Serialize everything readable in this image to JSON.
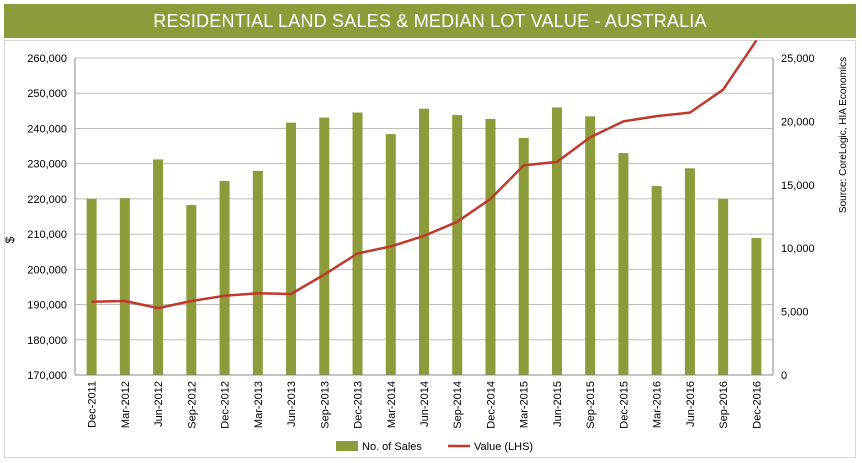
{
  "chart_data": {
    "type": "bar+line",
    "title": "RESIDENTIAL LAND SALES & MEDIAN LOT VALUE - AUSTRALIA",
    "source": "Source: CoreLogic, HIA Economics",
    "ylabel_left": "$",
    "categories": [
      "Dec-2011",
      "Mar-2012",
      "Jun-2012",
      "Sep-2012",
      "Dec-2012",
      "Mar-2013",
      "Jun-2013",
      "Sep-2013",
      "Dec-2013",
      "Mar-2014",
      "Jun-2014",
      "Sep-2014",
      "Dec-2014",
      "Mar-2015",
      "Jun-2015",
      "Sep-2015",
      "Dec-2015",
      "Mar-2016",
      "Jun-2016",
      "Sep-2016",
      "Dec-2016"
    ],
    "series": [
      {
        "name": "No. of Sales",
        "axis": "right",
        "kind": "bar",
        "color": "#8c9c3a",
        "values": [
          13900,
          13950,
          17000,
          13400,
          15300,
          16100,
          19900,
          20300,
          20700,
          19000,
          21000,
          20500,
          20200,
          18700,
          21100,
          20400,
          17500,
          14900,
          16300,
          13900,
          10800
        ]
      },
      {
        "name": "Value (LHS)",
        "axis": "left",
        "kind": "line",
        "color": "#c0392b",
        "values": [
          190800,
          191000,
          189000,
          191000,
          192500,
          193200,
          193000,
          198500,
          204500,
          206500,
          209500,
          213500,
          220000,
          229500,
          230500,
          237500,
          242000,
          243500,
          244500,
          251000,
          265000
        ]
      }
    ],
    "ylim_left": [
      170000,
      260000
    ],
    "ylim_right": [
      0,
      25000
    ],
    "yticks_left": [
      "170,000",
      "180,000",
      "190,000",
      "200,000",
      "210,000",
      "220,000",
      "230,000",
      "240,000",
      "250,000",
      "260,000"
    ],
    "yticks_right": [
      "0",
      "5,000",
      "10,000",
      "15,000",
      "20,000",
      "25,000"
    ],
    "legend": [
      "No. of Sales",
      "Value (LHS)"
    ],
    "legend_position": "bottom",
    "grid": true
  },
  "colors": {
    "bar": "#8c9c3a",
    "line": "#c0392b",
    "grid": "#bfbfbf"
  }
}
